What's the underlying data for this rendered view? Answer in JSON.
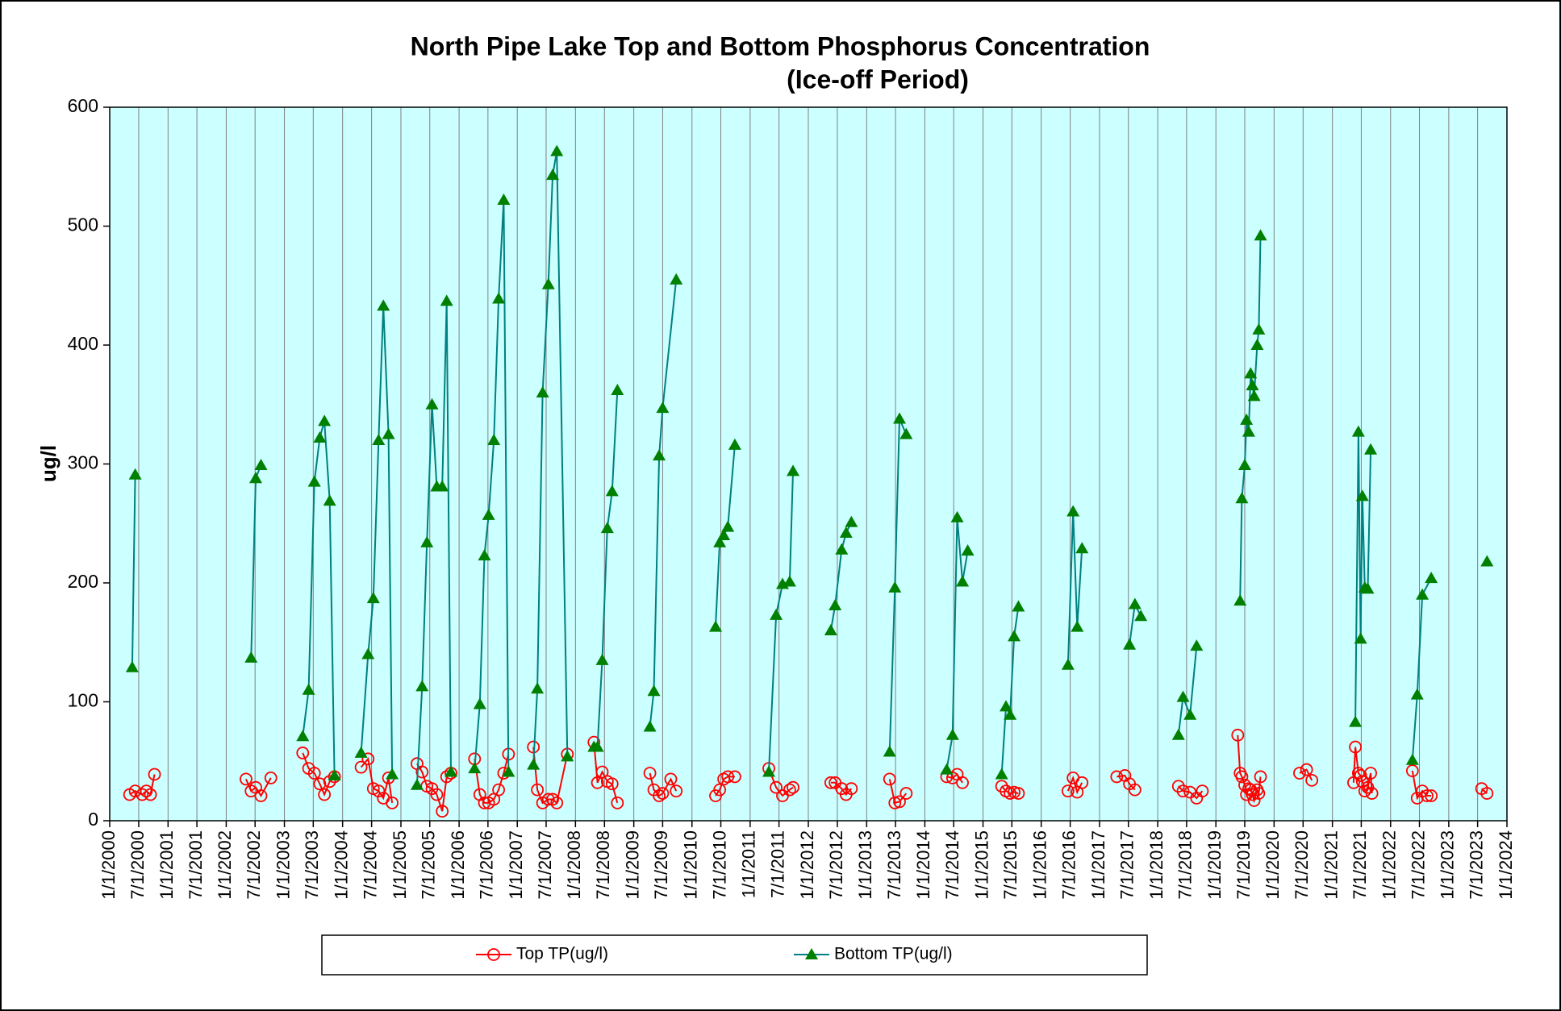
{
  "chart_data": {
    "type": "line",
    "title": "North Pipe Lake Top and Bottom Phosphorus Concentration",
    "subtitle": "(Ice-off Period)",
    "y_label": "ug/l",
    "background": "#ccffff",
    "grid": "x",
    "legend": "bottom",
    "xlim": [
      "2000-01-01",
      "2024-01-01"
    ],
    "ylim": [
      0,
      600
    ],
    "yticks": [
      0,
      100,
      200,
      300,
      400,
      500,
      600
    ],
    "xticks": [
      {
        "value": "2000-01-01",
        "label": "1/1/2000"
      },
      {
        "value": "2000-07-01",
        "label": "7/1/2000"
      },
      {
        "value": "2001-01-01",
        "label": "1/1/2001"
      },
      {
        "value": "2001-07-01",
        "label": "7/1/2001"
      },
      {
        "value": "2002-01-01",
        "label": "1/1/2002"
      },
      {
        "value": "2002-07-01",
        "label": "7/1/2002"
      },
      {
        "value": "2003-01-01",
        "label": "1/1/2003"
      },
      {
        "value": "2003-07-01",
        "label": "7/1/2003"
      },
      {
        "value": "2004-01-01",
        "label": "1/1/2004"
      },
      {
        "value": "2004-07-01",
        "label": "7/1/2004"
      },
      {
        "value": "2005-01-01",
        "label": "1/1/2005"
      },
      {
        "value": "2005-07-01",
        "label": "7/1/2005"
      },
      {
        "value": "2006-01-01",
        "label": "1/1/2006"
      },
      {
        "value": "2006-07-01",
        "label": "7/1/2006"
      },
      {
        "value": "2007-01-01",
        "label": "1/1/2007"
      },
      {
        "value": "2007-07-01",
        "label": "7/1/2007"
      },
      {
        "value": "2008-01-01",
        "label": "1/1/2008"
      },
      {
        "value": "2008-07-01",
        "label": "7/1/2008"
      },
      {
        "value": "2009-01-01",
        "label": "1/1/2009"
      },
      {
        "value": "2009-07-01",
        "label": "7/1/2009"
      },
      {
        "value": "2010-01-01",
        "label": "1/1/2010"
      },
      {
        "value": "2010-07-01",
        "label": "7/1/2010"
      },
      {
        "value": "2011-01-01",
        "label": "1/1/2011"
      },
      {
        "value": "2011-07-01",
        "label": "7/1/2011"
      },
      {
        "value": "2012-01-01",
        "label": "1/1/2012"
      },
      {
        "value": "2012-07-01",
        "label": "7/1/2012"
      },
      {
        "value": "2013-01-01",
        "label": "1/1/2013"
      },
      {
        "value": "2013-07-01",
        "label": "7/1/2013"
      },
      {
        "value": "2014-01-01",
        "label": "1/1/2014"
      },
      {
        "value": "2014-07-01",
        "label": "7/1/2014"
      },
      {
        "value": "2015-01-01",
        "label": "1/1/2015"
      },
      {
        "value": "2015-07-01",
        "label": "7/1/2015"
      },
      {
        "value": "2016-01-01",
        "label": "1/1/2016"
      },
      {
        "value": "2016-07-01",
        "label": "7/1/2016"
      },
      {
        "value": "2017-01-01",
        "label": "1/1/2017"
      },
      {
        "value": "2017-07-01",
        "label": "7/1/2017"
      },
      {
        "value": "2018-01-01",
        "label": "1/1/2018"
      },
      {
        "value": "2018-07-01",
        "label": "7/1/2018"
      },
      {
        "value": "2019-01-01",
        "label": "1/1/2019"
      },
      {
        "value": "2019-07-01",
        "label": "7/1/2019"
      },
      {
        "value": "2020-01-01",
        "label": "1/1/2020"
      },
      {
        "value": "2020-07-01",
        "label": "7/1/2020"
      },
      {
        "value": "2021-01-01",
        "label": "1/1/2021"
      },
      {
        "value": "2021-07-01",
        "label": "7/1/2021"
      },
      {
        "value": "2022-01-01",
        "label": "1/1/2022"
      },
      {
        "value": "2022-07-01",
        "label": "7/1/2022"
      },
      {
        "value": "2023-01-01",
        "label": "1/1/2023"
      },
      {
        "value": "2023-07-01",
        "label": "7/1/2023"
      },
      {
        "value": "2024-01-01",
        "label": "1/1/2024"
      }
    ],
    "series": [
      {
        "name": "Top TP(ug/l)",
        "color": "#ff0000",
        "marker": "circle",
        "x": [
          "2000-05-05",
          "2000-06-09",
          "2000-07-23",
          "2000-08-18",
          "2000-09-13",
          "2000-10-08",
          null,
          "2002-05-05",
          "2002-06-06",
          "2002-07-05",
          "2002-08-07",
          "2002-10-08",
          null,
          "2003-04-26",
          "2003-06-02",
          "2003-07-08",
          "2003-08-11",
          "2003-09-09",
          "2003-10-12",
          "2003-11-11",
          null,
          "2004-04-26",
          "2004-06-09",
          "2004-07-12",
          "2004-08-14",
          "2004-09-13",
          "2004-10-15",
          "2004-11-07",
          null,
          "2005-04-12",
          "2005-05-14",
          "2005-06-13",
          "2005-07-15",
          "2005-08-14",
          "2005-09-17",
          "2005-10-15",
          "2005-11-11",
          null,
          "2006-04-08",
          "2006-05-11",
          "2006-06-09",
          "2006-07-05",
          "2006-08-07",
          "2006-09-06",
          "2006-10-08",
          "2006-11-07",
          null,
          "2007-04-12",
          "2007-05-07",
          "2007-06-09",
          "2007-07-15",
          "2007-08-11",
          "2007-09-06",
          "2007-11-11",
          null,
          "2008-04-26",
          "2008-05-18",
          "2008-06-17",
          "2008-07-19",
          "2008-08-18",
          "2008-09-20",
          null,
          "2009-04-12",
          "2009-05-07",
          "2009-06-09",
          "2009-07-01",
          "2009-08-21",
          "2009-09-24",
          null,
          "2010-05-29",
          "2010-06-24",
          "2010-07-19",
          "2010-08-14",
          "2010-09-27",
          null,
          "2011-04-28",
          "2011-06-13",
          "2011-07-23",
          "2011-09-06",
          "2011-09-27",
          null,
          "2012-05-21",
          "2012-06-17",
          "2012-07-28",
          "2012-08-25",
          "2012-09-27",
          null,
          "2013-05-25",
          "2013-06-27",
          "2013-07-26",
          "2013-09-06",
          null,
          "2014-05-18",
          "2014-06-24",
          "2014-07-23",
          "2014-08-25",
          null,
          "2015-04-28",
          "2015-05-25",
          "2015-06-20",
          "2015-07-15",
          "2015-08-11",
          null,
          "2016-06-17",
          "2016-07-19",
          "2016-08-14",
          "2016-09-13",
          null,
          "2017-04-19",
          "2017-06-09",
          "2017-07-08",
          "2017-08-11",
          null,
          "2018-05-11",
          "2018-06-09",
          "2018-07-23",
          "2018-09-02",
          "2018-10-08",
          null,
          "2019-05-18",
          "2019-06-02",
          "2019-06-13",
          "2019-07-01",
          "2019-07-12",
          "2019-07-26",
          "2019-08-07",
          "2019-08-18",
          "2019-08-29",
          "2019-09-17",
          "2019-09-27",
          "2019-10-08",
          null,
          "2020-06-09",
          "2020-07-23",
          "2020-08-25",
          null,
          "2021-05-14",
          "2021-05-25",
          "2021-06-13",
          "2021-06-27",
          "2021-07-08",
          "2021-07-23",
          "2021-08-11",
          "2021-08-29",
          "2021-09-06",
          null,
          "2022-05-18",
          "2022-06-17",
          "2022-07-19",
          "2022-08-18",
          "2022-09-13",
          null,
          "2023-07-26",
          "2023-08-29"
        ],
        "values": [
          22,
          25,
          22,
          25,
          22,
          39,
          null,
          35,
          25,
          28,
          21,
          36,
          null,
          57,
          44,
          40,
          31,
          22,
          33,
          37,
          null,
          45,
          52,
          27,
          25,
          19,
          36,
          15,
          null,
          48,
          41,
          29,
          27,
          22,
          8,
          37,
          40,
          null,
          52,
          22,
          15,
          15,
          18,
          26,
          40,
          56,
          null,
          62,
          26,
          15,
          18,
          18,
          15,
          56,
          null,
          66,
          32,
          41,
          33,
          31,
          15,
          null,
          40,
          26,
          21,
          23,
          35,
          25,
          null,
          21,
          26,
          35,
          37,
          37,
          null,
          44,
          28,
          21,
          26,
          28,
          null,
          32,
          32,
          27,
          22,
          27,
          null,
          35,
          15,
          16,
          23,
          null,
          37,
          36,
          39,
          32,
          null,
          29,
          25,
          23,
          24,
          23,
          null,
          25,
          36,
          24,
          32,
          null,
          37,
          38,
          31,
          26,
          null,
          29,
          25,
          24,
          19,
          25,
          null,
          72,
          40,
          37,
          30,
          22,
          27,
          26,
          22,
          17,
          26,
          23,
          37,
          null,
          40,
          43,
          34,
          null,
          32,
          62,
          40,
          38,
          33,
          25,
          28,
          40,
          23,
          null,
          42,
          19,
          25,
          21,
          21,
          null,
          27,
          23
        ]
      },
      {
        "name": "Bottom TP(ug/l)",
        "color": "#008080",
        "marker": "triangle",
        "marker_color": "#008000",
        "x": [
          "2000-05-21",
          "2000-06-09",
          null,
          "2002-06-06",
          "2002-07-05",
          "2002-08-07",
          null,
          "2003-04-26",
          "2003-06-02",
          "2003-07-08",
          "2003-08-11",
          "2003-09-09",
          "2003-10-12",
          "2003-11-11",
          null,
          "2004-04-26",
          "2004-06-09",
          "2004-07-12",
          "2004-08-14",
          "2004-09-13",
          "2004-10-15",
          "2004-11-07",
          null,
          "2005-04-12",
          "2005-05-14",
          "2005-06-13",
          "2005-07-15",
          "2005-08-14",
          "2005-09-17",
          "2005-10-15",
          "2005-11-11",
          null,
          "2006-04-08",
          "2006-05-11",
          "2006-06-09",
          "2006-07-05",
          "2006-08-07",
          "2006-09-06",
          "2006-10-08",
          "2006-11-07",
          null,
          "2007-04-12",
          "2007-05-07",
          "2007-06-09",
          "2007-07-15",
          "2007-08-11",
          "2007-09-06",
          "2007-11-11",
          null,
          "2008-04-26",
          "2008-05-18",
          "2008-06-17",
          "2008-07-19",
          "2008-08-18",
          "2008-09-20",
          null,
          "2009-04-12",
          "2009-05-07",
          "2009-06-09",
          "2009-07-01",
          "2009-09-24",
          null,
          "2010-05-29",
          "2010-06-24",
          "2010-07-19",
          "2010-08-14",
          "2010-09-27",
          null,
          "2011-04-28",
          "2011-06-13",
          "2011-07-23",
          "2011-09-06",
          "2011-09-27",
          null,
          "2012-05-21",
          "2012-06-17",
          "2012-07-28",
          "2012-08-25",
          "2012-09-27",
          null,
          "2013-05-25",
          "2013-06-27",
          "2013-07-26",
          "2013-09-06",
          null,
          "2014-05-18",
          "2014-06-24",
          "2014-07-23",
          "2014-08-25",
          "2014-09-27",
          null,
          "2015-04-28",
          "2015-05-25",
          "2015-06-20",
          "2015-07-15",
          "2015-08-11",
          null,
          "2016-06-17",
          "2016-07-19",
          "2016-08-14",
          "2016-09-13",
          null,
          "2017-07-08",
          "2017-08-11",
          "2017-09-17",
          null,
          "2018-05-11",
          "2018-06-09",
          "2018-07-23",
          "2018-09-02",
          null,
          "2019-06-02",
          "2019-06-13",
          "2019-07-01",
          "2019-07-12",
          "2019-07-26",
          "2019-08-07",
          "2019-08-18",
          "2019-08-29",
          "2019-09-17",
          "2019-09-27",
          "2019-10-08",
          null,
          "2021-05-25",
          "2021-06-13",
          "2021-06-27",
          "2021-07-08",
          "2021-07-23",
          "2021-08-11",
          "2021-08-29",
          null,
          "2022-05-18",
          "2022-06-17",
          "2022-07-19",
          "2022-09-13",
          null,
          "2023-08-29"
        ],
        "values": [
          129,
          291,
          null,
          137,
          288,
          299,
          null,
          71,
          110,
          285,
          322,
          336,
          269,
          38,
          null,
          57,
          140,
          187,
          320,
          433,
          325,
          39,
          null,
          30,
          113,
          234,
          350,
          281,
          281,
          437,
          41,
          null,
          44,
          98,
          223,
          257,
          320,
          439,
          522,
          41,
          null,
          47,
          111,
          360,
          451,
          543,
          563,
          54,
          null,
          62,
          62,
          135,
          246,
          277,
          362,
          null,
          79,
          109,
          307,
          347,
          455,
          null,
          163,
          234,
          240,
          247,
          316,
          null,
          41,
          173,
          199,
          201,
          294,
          null,
          160,
          181,
          228,
          242,
          251,
          null,
          58,
          196,
          338,
          325,
          null,
          43,
          72,
          255,
          201,
          227,
          null,
          39,
          96,
          89,
          155,
          180,
          null,
          131,
          260,
          163,
          229,
          null,
          148,
          182,
          172,
          null,
          72,
          104,
          89,
          147,
          null,
          185,
          271,
          299,
          337,
          327,
          376,
          366,
          357,
          400,
          413,
          492,
          null,
          83,
          327,
          153,
          273,
          196,
          195,
          312,
          null,
          51,
          106,
          190,
          204,
          null,
          218
        ]
      }
    ]
  }
}
